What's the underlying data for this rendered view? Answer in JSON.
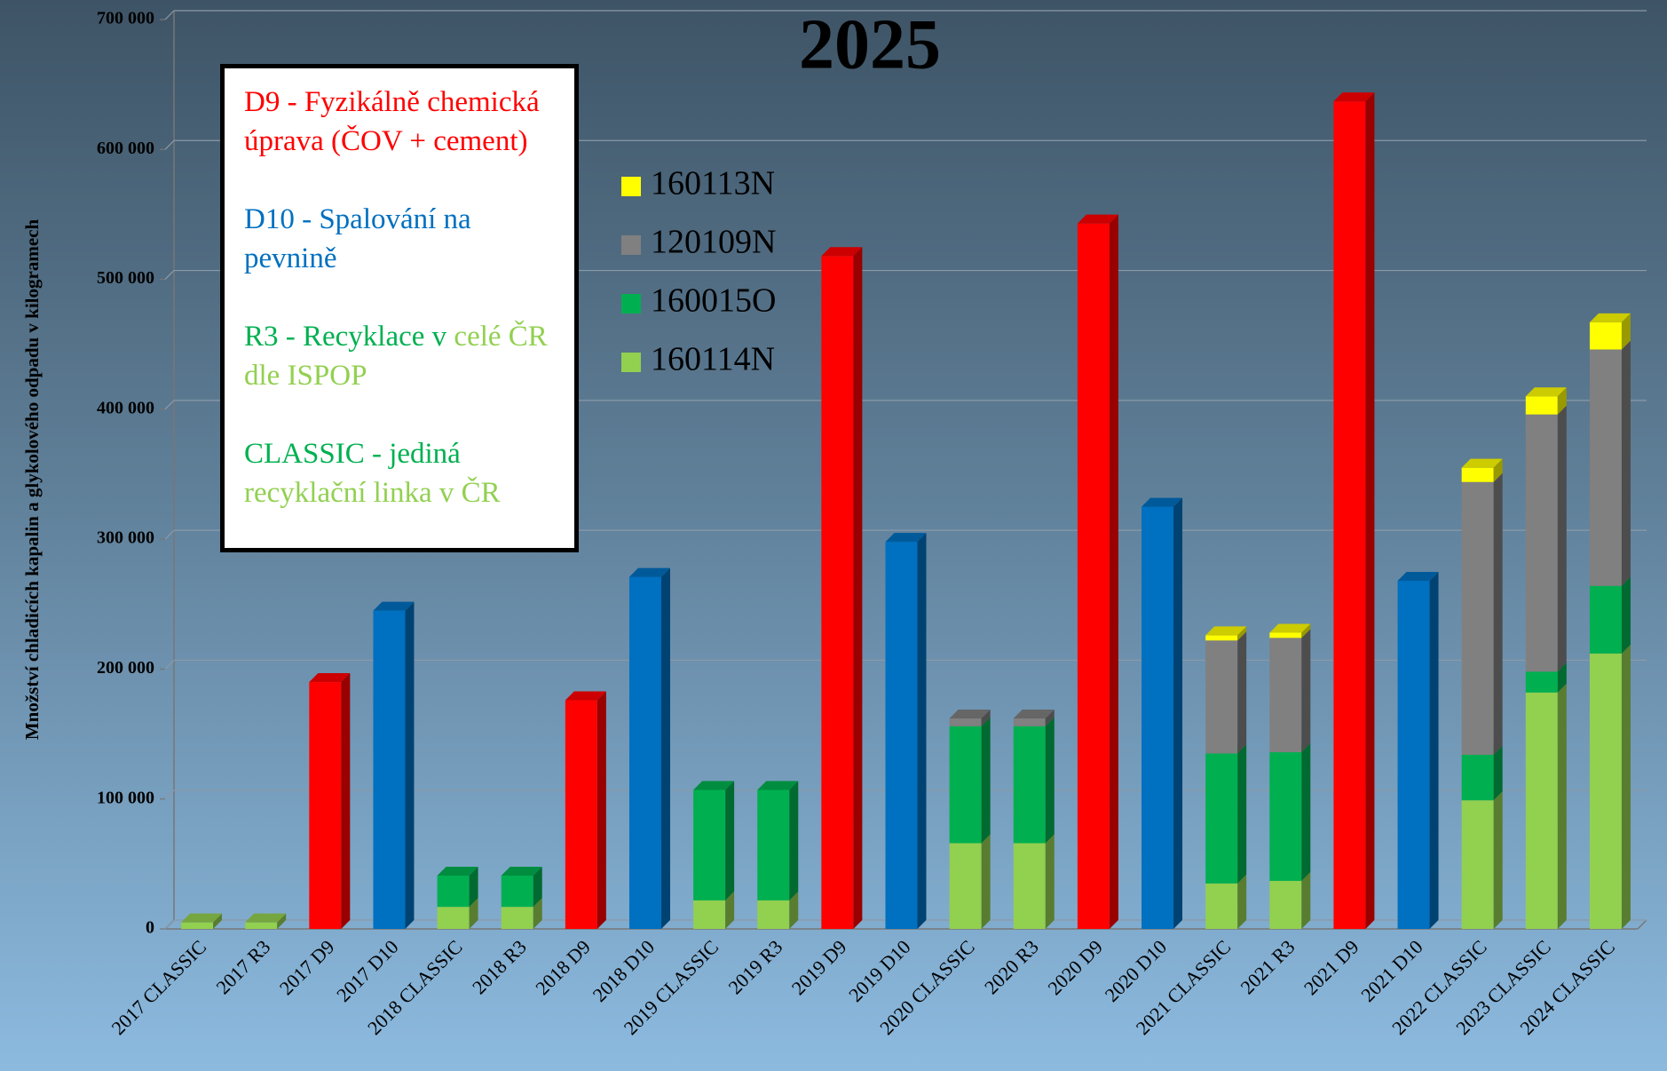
{
  "chart_data": {
    "type": "stacked-bar-3d",
    "title": "2025",
    "y_label": "Množství chladicích kapalin a glykolového odpadu v kilogramech",
    "categories": [
      "2017 CLASSIC",
      "2017 R3",
      "2017 D9",
      "2017 D10",
      "2018 CLASSIC",
      "2018 R3",
      "2018 D9",
      "2018 D10",
      "2019 CLASSIC",
      "2019 R3",
      "2019 D9",
      "2019 D10",
      "2020 CLASSIC",
      "2020 R3",
      "2020 D9",
      "2020 D10",
      "2021 CLASSIC",
      "2021 R3",
      "2021 D9",
      "2021 D10",
      "2022 CLASSIC",
      "2023 CLASSIC",
      "2024 CLASSIC"
    ],
    "series": [
      {
        "name": "160114N",
        "color": "#92d050",
        "values": [
          5000,
          5000,
          null,
          null,
          17000,
          17000,
          null,
          null,
          22000,
          22000,
          null,
          null,
          66000,
          66000,
          null,
          null,
          35000,
          37000,
          null,
          null,
          99000,
          182000,
          212000
        ]
      },
      {
        "name": "160015O",
        "color": "#00b050",
        "values": [
          null,
          null,
          null,
          null,
          24000,
          24000,
          null,
          null,
          85000,
          85000,
          null,
          null,
          90000,
          90000,
          null,
          null,
          100000,
          99000,
          null,
          null,
          35000,
          16000,
          52000
        ]
      },
      {
        "name": "120109N",
        "color": "#808080",
        "values": [
          null,
          null,
          null,
          null,
          null,
          null,
          null,
          null,
          null,
          null,
          null,
          null,
          6000,
          6000,
          null,
          null,
          87000,
          88000,
          null,
          null,
          210000,
          198000,
          182000
        ]
      },
      {
        "name": "160113N",
        "color": "#ffff00",
        "values": [
          null,
          null,
          null,
          null,
          null,
          null,
          null,
          null,
          null,
          null,
          null,
          null,
          null,
          null,
          null,
          null,
          4000,
          4000,
          null,
          null,
          11000,
          14000,
          21000
        ]
      },
      {
        "colors": [
          null,
          null,
          "#ff0000",
          "#0070c0",
          null,
          null,
          "#ff0000",
          "#0070c0",
          null,
          null,
          "#ff0000",
          "#0070c0",
          null,
          null,
          "#ff0000",
          "#0070c0",
          null,
          null,
          "#ff0000",
          "#0070c0",
          null,
          null,
          null
        ],
        "values": [
          null,
          null,
          190000,
          245000,
          null,
          null,
          176000,
          271000,
          null,
          null,
          518000,
          298000,
          null,
          null,
          543000,
          325000,
          null,
          null,
          637000,
          268000,
          null,
          null,
          null
        ]
      }
    ],
    "ylim": [
      0,
      700000
    ],
    "yticks": [
      0,
      {
        "value": 100000,
        "label": "100 000"
      },
      {
        "value": 200000,
        "label": "200 000"
      },
      {
        "value": 300000,
        "label": "300 000"
      },
      {
        "value": 400000,
        "label": "400 000"
      },
      {
        "value": 500000,
        "label": "500 000"
      },
      {
        "value": 600000,
        "label": "600 000"
      },
      {
        "value": 700000,
        "label": "700 000"
      }
    ],
    "grid": true,
    "annotation": {
      "paragraphs": [
        [
          {
            "text": "D9 - Fyzikálně chemická úprava (ČOV + cement)",
            "color": "#ff0000"
          }
        ],
        [
          {
            "text": "D10 - Spalování na pevnině",
            "color": "#0070c0"
          }
        ],
        [
          {
            "text": "R3 - Recyklace v ",
            "color": "#00b050"
          },
          {
            "text": "celé ČR dle ISPOP",
            "color": "#92d050"
          }
        ],
        [
          {
            "text": "CLASSIC - jediná ",
            "color": "#00b050"
          },
          {
            "text": "recyklační linka v ČR",
            "color": "#92d050"
          }
        ]
      ]
    }
  }
}
